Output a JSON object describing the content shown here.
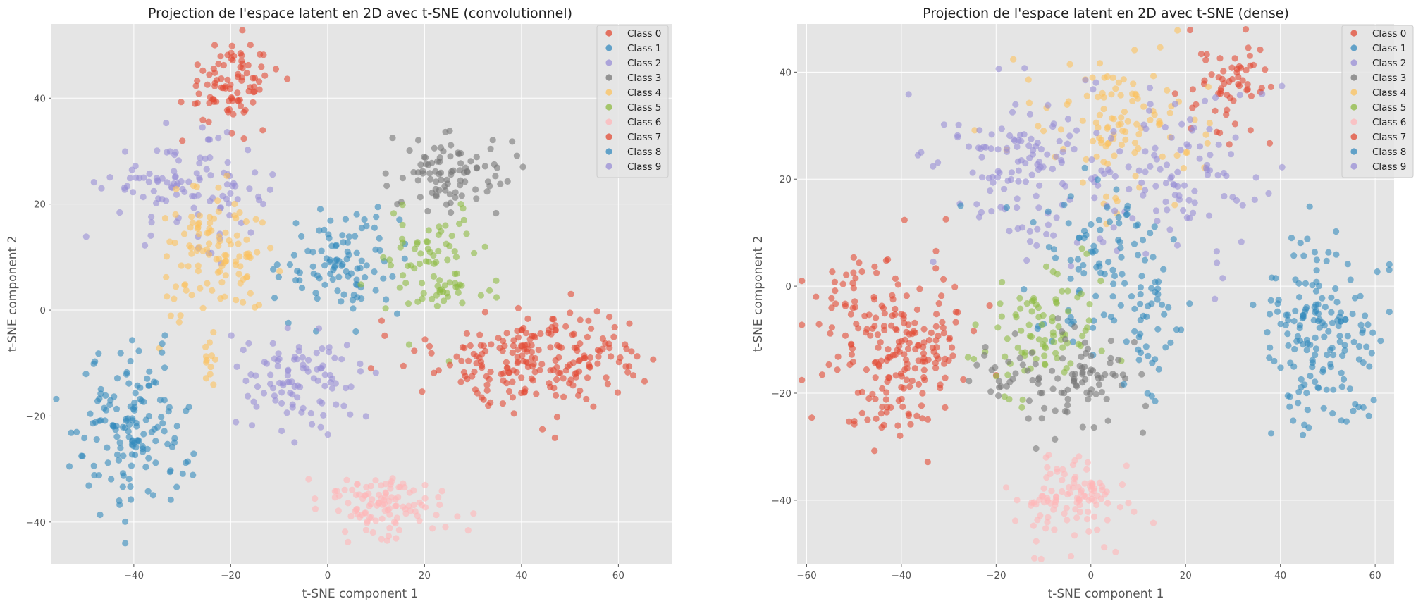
{
  "figure": {
    "background": "#ffffff"
  },
  "chart_data": [
    {
      "type": "scatter",
      "title": "Projection de l'espace latent en 2D avec t-SNE (convolutionnel)",
      "xlabel": "t-SNE component 1",
      "ylabel": "t-SNE component 2",
      "xlim": [
        -57,
        71
      ],
      "ylim": [
        -48,
        54
      ],
      "xticks": [
        -40,
        -20,
        0,
        20,
        40,
        60
      ],
      "yticks": [
        -40,
        -20,
        0,
        20,
        40
      ],
      "xtick_labels": [
        "−40",
        "−20",
        "0",
        "20",
        "40",
        "60"
      ],
      "ytick_labels": [
        "−40",
        "−20",
        "0",
        "20",
        "40"
      ],
      "grid": true,
      "legend_position": "top-right",
      "clusters": [
        {
          "cls": 7,
          "cx": -20,
          "cy": 43,
          "sx": 5,
          "sy": 4,
          "n": 90
        },
        {
          "cls": 9,
          "cx": -29,
          "cy": 23,
          "sx": 8,
          "sy": 4.5,
          "n": 110
        },
        {
          "cls": 4,
          "cx": -23,
          "cy": 10,
          "sx": 6,
          "sy": 6,
          "n": 110
        },
        {
          "cls": 4,
          "cx": -24,
          "cy": -8,
          "sx": 2,
          "sy": 3,
          "n": 12
        },
        {
          "cls": 1,
          "cx": 3,
          "cy": 9,
          "sx": 6,
          "sy": 5,
          "n": 100
        },
        {
          "cls": 3,
          "cx": 25,
          "cy": 26,
          "sx": 6,
          "sy": 3.5,
          "n": 90
        },
        {
          "cls": 5,
          "cx": 22,
          "cy": 8,
          "sx": 6,
          "sy": 6,
          "n": 85
        },
        {
          "cls": 0,
          "cx": 44,
          "cy": -9,
          "sx": 11,
          "sy": 4.5,
          "n": 220
        },
        {
          "cls": 2,
          "cx": -5,
          "cy": -13,
          "sx": 6,
          "sy": 5,
          "n": 100
        },
        {
          "cls": 8,
          "cx": -40,
          "cy": -23,
          "sx": 6,
          "sy": 7,
          "n": 150
        },
        {
          "cls": 6,
          "cx": 12,
          "cy": -37,
          "sx": 7,
          "sy": 3,
          "n": 110
        }
      ],
      "series": [
        {
          "name": "Class 0",
          "color": "#e24a33"
        },
        {
          "name": "Class 1",
          "color": "#348abd"
        },
        {
          "name": "Class 2",
          "color": "#988ed5"
        },
        {
          "name": "Class 3",
          "color": "#777777"
        },
        {
          "name": "Class 4",
          "color": "#fbc15e"
        },
        {
          "name": "Class 5",
          "color": "#8eba42"
        },
        {
          "name": "Class 6",
          "color": "#ffb5b8"
        },
        {
          "name": "Class 7",
          "color": "#e24a33"
        },
        {
          "name": "Class 8",
          "color": "#348abd"
        },
        {
          "name": "Class 9",
          "color": "#988ed5"
        }
      ]
    },
    {
      "type": "scatter",
      "title": "Projection de l'espace latent en 2D avec t-SNE (dense)",
      "xlabel": "t-SNE component 1",
      "ylabel": "t-SNE component 2",
      "xlim": [
        -62,
        64
      ],
      "ylim": [
        -52,
        49
      ],
      "xticks": [
        -60,
        -40,
        -20,
        0,
        20,
        40,
        60
      ],
      "yticks": [
        -40,
        -20,
        0,
        20,
        40
      ],
      "xtick_labels": [
        "−60",
        "−40",
        "−20",
        "0",
        "20",
        "40",
        "60"
      ],
      "ytick_labels": [
        "−40",
        "−20",
        "0",
        "20",
        "40"
      ],
      "grid": true,
      "legend_position": "top-right",
      "clusters": [
        {
          "cls": 0,
          "cx": -42,
          "cy": -10,
          "sx": 8,
          "sy": 9,
          "n": 220
        },
        {
          "cls": 8,
          "cx": 49,
          "cy": -10,
          "sx": 6,
          "sy": 9,
          "n": 170
        },
        {
          "cls": 7,
          "cx": 29,
          "cy": 38,
          "sx": 4,
          "sy": 4,
          "n": 60
        },
        {
          "cls": 4,
          "cx": 6,
          "cy": 30,
          "sx": 9,
          "sy": 7,
          "n": 110
        },
        {
          "cls": 9,
          "cx": -13,
          "cy": 22,
          "sx": 9,
          "sy": 8,
          "n": 130
        },
        {
          "cls": 2,
          "cx": 18,
          "cy": 20,
          "sx": 8,
          "sy": 8,
          "n": 100
        },
        {
          "cls": 1,
          "cx": 0,
          "cy": 5,
          "sx": 9,
          "sy": 8,
          "n": 90
        },
        {
          "cls": 5,
          "cx": -10,
          "cy": -8,
          "sx": 7,
          "sy": 6,
          "n": 90
        },
        {
          "cls": 3,
          "cx": -5,
          "cy": -18,
          "sx": 8,
          "sy": 4,
          "n": 100
        },
        {
          "cls": 6,
          "cx": -4,
          "cy": -40,
          "sx": 6,
          "sy": 4,
          "n": 110
        },
        {
          "cls": 1,
          "cx": 12,
          "cy": -8,
          "sx": 4,
          "sy": 6,
          "n": 40
        }
      ],
      "series": [
        {
          "name": "Class 0",
          "color": "#e24a33"
        },
        {
          "name": "Class 1",
          "color": "#348abd"
        },
        {
          "name": "Class 2",
          "color": "#988ed5"
        },
        {
          "name": "Class 3",
          "color": "#777777"
        },
        {
          "name": "Class 4",
          "color": "#fbc15e"
        },
        {
          "name": "Class 5",
          "color": "#8eba42"
        },
        {
          "name": "Class 6",
          "color": "#ffb5b8"
        },
        {
          "name": "Class 7",
          "color": "#e24a33"
        },
        {
          "name": "Class 8",
          "color": "#348abd"
        },
        {
          "name": "Class 9",
          "color": "#988ed5"
        }
      ]
    }
  ]
}
